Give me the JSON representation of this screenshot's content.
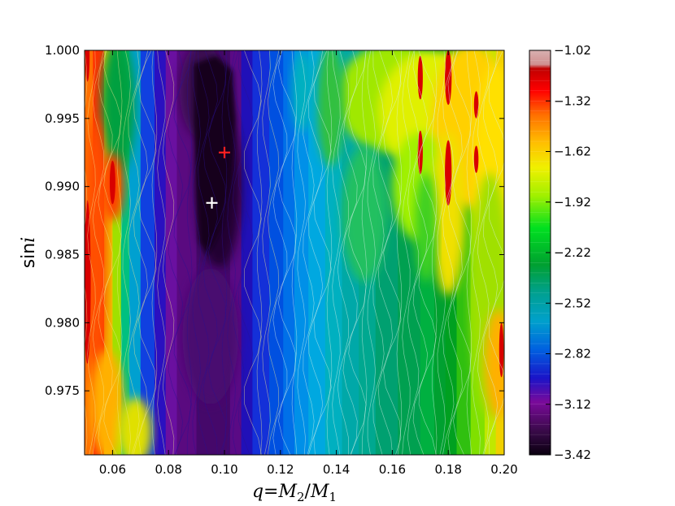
{
  "chart_data": {
    "type": "heatmap",
    "title": "",
    "xlabel": "q=M2/M1",
    "ylabel": "sin i",
    "xlim": [
      0.05,
      0.2
    ],
    "ylim": [
      0.9703,
      1.0
    ],
    "xticks": [
      "0.06",
      "0.08",
      "0.10",
      "0.12",
      "0.14",
      "0.16",
      "0.18",
      "0.20"
    ],
    "xtick_values": [
      0.06,
      0.08,
      0.1,
      0.12,
      0.14,
      0.16,
      0.18,
      0.2
    ],
    "yticks": [
      "1.000",
      "0.995",
      "0.990",
      "0.985",
      "0.980",
      "0.975"
    ],
    "ytick_values": [
      1.0,
      0.995,
      0.99,
      0.985,
      0.98,
      0.975
    ],
    "colorbar": {
      "min": -3.42,
      "max": -1.02,
      "ticks": [
        "−1.02",
        "−1.32",
        "−1.62",
        "−1.92",
        "−2.22",
        "−2.52",
        "−2.82",
        "−3.12",
        "−3.42"
      ],
      "tick_values": [
        -1.02,
        -1.32,
        -1.62,
        -1.92,
        -2.22,
        -2.52,
        -2.82,
        -3.12,
        -3.42
      ],
      "colormap": "spectral (black-purple-blue-cyan-green-yellow-orange-red-pink)"
    },
    "markers": [
      {
        "name": "",
        "x": 0.1,
        "y": 0.9925,
        "symbol": "+",
        "color": "#ff2020"
      },
      {
        "name": "",
        "x": 0.0955,
        "y": 0.9888,
        "symbol": "+",
        "color": "#ffffff"
      }
    ],
    "grid": false,
    "contour_lines": true
  },
  "labels": {
    "xlabel_q": "q",
    "xlabel_eq": "=",
    "xlabel_M": "M",
    "xlabel_sub2": "2",
    "xlabel_slash": "/",
    "xlabel_M1": "M",
    "xlabel_sub1": "1",
    "ylabel_sin": "sin",
    "ylabel_i": "i"
  }
}
